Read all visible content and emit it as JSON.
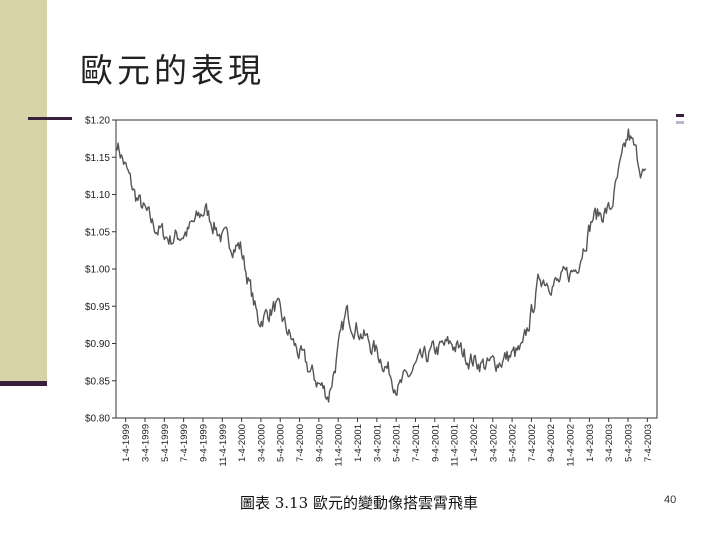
{
  "slide": {
    "title": "歐元的表現",
    "caption_prefix": "圖表 3.13",
    "caption_text": "歐元的變動像搭雲霄飛車",
    "page_number": "40"
  },
  "colors": {
    "left_band": "#d6d3a8",
    "accent_dark": "#3a1f3d",
    "line": "#555555"
  },
  "chart_data": {
    "type": "line",
    "title": "",
    "xlabel": "",
    "ylabel": "",
    "ylim": [
      0.8,
      1.2
    ],
    "y_ticks": [
      1.2,
      1.15,
      1.1,
      1.05,
      1.0,
      0.95,
      0.9,
      0.85,
      0.8
    ],
    "y_tick_labels": [
      "$1.20",
      "$1.15",
      "$1.10",
      "$1.05",
      "$1.00",
      "$0.95",
      "$0.90",
      "$0.85",
      "$0.80"
    ],
    "x_tick_labels": [
      "1-4-1999",
      "3-4-1999",
      "5-4-1999",
      "7-4-1999",
      "9-4-1999",
      "11-4-1999",
      "1-4-2000",
      "3-4-2000",
      "5-4-2000",
      "7-4-2000",
      "9-4-2000",
      "11-4-2000",
      "1-4-2001",
      "3-4-2001",
      "5-4-2001",
      "7-4-2001",
      "9-4-2001",
      "11-4-2001",
      "1-4-2002",
      "3-4-2002",
      "5-4-2002",
      "7-4-2002",
      "9-4-2002",
      "11-4-2002",
      "1-4-2003",
      "3-4-2003",
      "5-4-2003",
      "7-4-2003"
    ],
    "grid": false,
    "series": [
      {
        "values": [
          1.17,
          1.1,
          1.06,
          1.04,
          1.05,
          1.08,
          1.04,
          1.03,
          0.93,
          0.95,
          0.9,
          0.86,
          0.83,
          0.94,
          0.91,
          0.88,
          0.84,
          0.87,
          0.89,
          0.9,
          0.88,
          0.87,
          0.88,
          0.89,
          0.99,
          0.98,
          1.0,
          1.07,
          1.08,
          1.18,
          1.12
        ]
      }
    ]
  }
}
